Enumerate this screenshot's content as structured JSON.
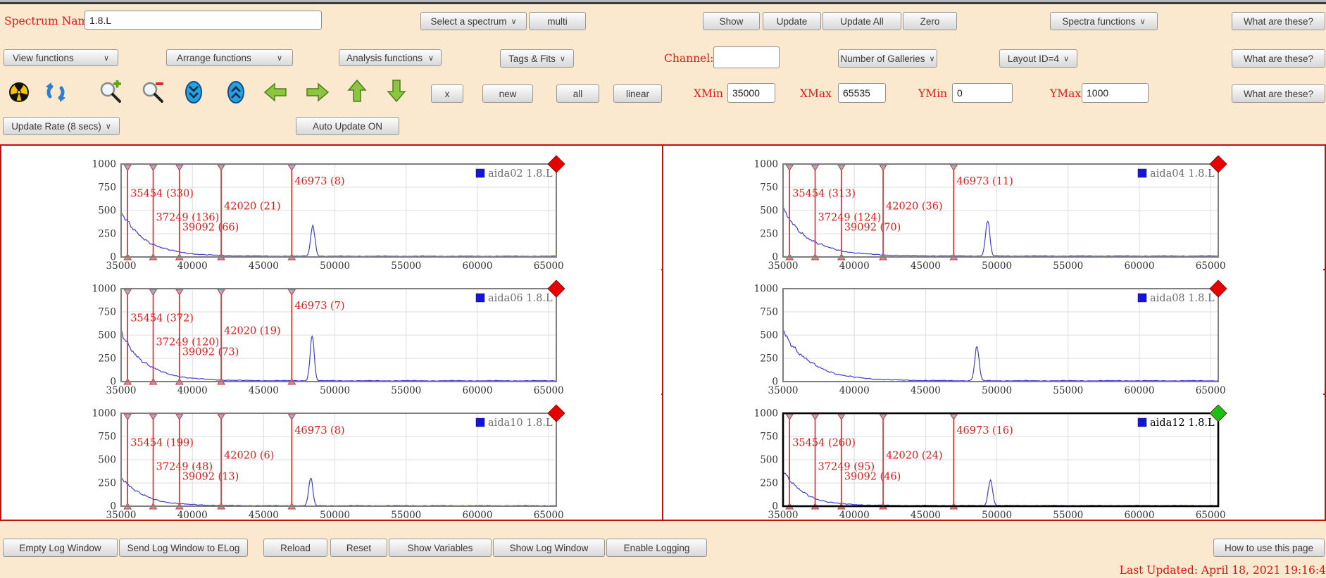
{
  "toolbar": {
    "spectrum_name_label": "Spectrum Name:",
    "spectrum_name_value": "1.8.L",
    "select_spectrum": "Select a spectrum",
    "multi": "multi",
    "show": "Show",
    "update": "Update",
    "update_all": "Update All",
    "zero": "Zero",
    "spectra_functions": "Spectra functions",
    "what_are_these": "What are these?",
    "view_functions": "View functions",
    "arrange_functions": "Arrange functions",
    "analysis_functions": "Analysis functions",
    "tags_fits": "Tags & Fits",
    "channel_label": "Channel:",
    "channel_value": "",
    "number_of_galleries": "Number of Galleries",
    "layout_id": "Layout ID=4",
    "x_btn": "x",
    "new_btn": "new",
    "all_btn": "all",
    "linear_btn": "linear",
    "xmin_label": "XMin",
    "xmin_value": "35000",
    "xmax_label": "XMax",
    "xmax_value": "65535",
    "ymin_label": "YMin",
    "ymin_value": "0",
    "ymax_label": "YMax",
    "ymax_value": "1000",
    "update_rate": "Update Rate (8 secs)",
    "auto_update": "Auto Update ON",
    "icon_names": [
      "radiation-icon",
      "refresh-icon",
      "zoom-in-icon",
      "zoom-out-icon",
      "collapse-vertical-icon",
      "expand-vertical-icon",
      "arrow-left-icon",
      "arrow-right-icon",
      "arrow-up-icon",
      "arrow-down-icon"
    ]
  },
  "chart_data": {
    "type": "line",
    "xmin": 35000,
    "xmax": 65535,
    "ymin": 0,
    "ymax": 1000,
    "xticks": [
      35000,
      40000,
      45000,
      50000,
      55000,
      60000,
      65000
    ],
    "yticks": [
      0,
      250,
      500,
      750,
      1000
    ],
    "grid": true,
    "legend_position": "top-right",
    "marker_label_heights": [
      648,
      390,
      285,
      510,
      782
    ],
    "curve_color": "#4040cc",
    "marker_color": "#e42222",
    "legend_square_color": "#1414dd",
    "charts": [
      {
        "id": "aida02",
        "legend": "aida02 1.8.L",
        "diamond_color": "#e60000",
        "selected": false,
        "markers": [
          {
            "x": 35454,
            "count": 330
          },
          {
            "x": 37249,
            "count": 136
          },
          {
            "x": 39092,
            "count": 66
          },
          {
            "x": 42020,
            "count": 21
          },
          {
            "x": 46973,
            "count": 8
          }
        ],
        "curve": {
          "start": 470,
          "tau": 1750,
          "floor": 8,
          "peak_x": 48450,
          "peak_h": 330,
          "peak_sigma": 150
        }
      },
      {
        "id": "aida04",
        "legend": "aida04 1.8.L",
        "diamond_color": "#e60000",
        "selected": false,
        "markers": [
          {
            "x": 35454,
            "count": 313
          },
          {
            "x": 37249,
            "count": 124
          },
          {
            "x": 39092,
            "count": 70
          },
          {
            "x": 42020,
            "count": 36
          },
          {
            "x": 46973,
            "count": 11
          }
        ],
        "curve": {
          "start": 495,
          "tau": 1900,
          "floor": 10,
          "peak_x": 49350,
          "peak_h": 375,
          "peak_sigma": 150
        }
      },
      {
        "id": "aida06",
        "legend": "aida06 1.8.L",
        "diamond_color": "#e60000",
        "selected": false,
        "markers": [
          {
            "x": 35454,
            "count": 372
          },
          {
            "x": 37249,
            "count": 120
          },
          {
            "x": 39092,
            "count": 73
          },
          {
            "x": 42020,
            "count": 19
          },
          {
            "x": 46973,
            "count": 7
          }
        ],
        "curve": {
          "start": 520,
          "tau": 1700,
          "floor": 9,
          "peak_x": 48400,
          "peak_h": 495,
          "peak_sigma": 140
        }
      },
      {
        "id": "aida08",
        "legend": "aida08 1.8.L",
        "diamond_color": "#e60000",
        "selected": false,
        "markers": [],
        "curve": {
          "start": 545,
          "tau": 1900,
          "floor": 9,
          "peak_x": 48600,
          "peak_h": 360,
          "peak_sigma": 150
        }
      },
      {
        "id": "aida10",
        "legend": "aida10 1.8.L",
        "diamond_color": "#e60000",
        "selected": false,
        "markers": [
          {
            "x": 35454,
            "count": 199
          },
          {
            "x": 37249,
            "count": 48
          },
          {
            "x": 39092,
            "count": 13
          },
          {
            "x": 42020,
            "count": 6
          },
          {
            "x": 46973,
            "count": 8
          }
        ],
        "curve": {
          "start": 320,
          "tau": 1500,
          "floor": 6,
          "peak_x": 48300,
          "peak_h": 300,
          "peak_sigma": 140
        }
      },
      {
        "id": "aida12",
        "legend": "aida12 1.8.L",
        "diamond_color": "#17c217",
        "selected": true,
        "markers": [
          {
            "x": 35454,
            "count": 260
          },
          {
            "x": 37249,
            "count": 95
          },
          {
            "x": 39092,
            "count": 46
          },
          {
            "x": 42020,
            "count": 24
          },
          {
            "x": 46973,
            "count": 16
          }
        ],
        "curve": {
          "start": 385,
          "tau": 1400,
          "floor": 7,
          "peak_x": 49550,
          "peak_h": 280,
          "peak_sigma": 150
        }
      }
    ]
  },
  "footer": {
    "empty_log": "Empty Log Window",
    "send_log": "Send Log Window to ELog",
    "reload": "Reload",
    "reset": "Reset",
    "show_variables": "Show Variables",
    "show_log_window": "Show Log Window",
    "enable_logging": "Enable Logging",
    "how_to_use": "How to use this page",
    "last_updated": "Last Updated: April 18, 2021 19:16:4"
  }
}
